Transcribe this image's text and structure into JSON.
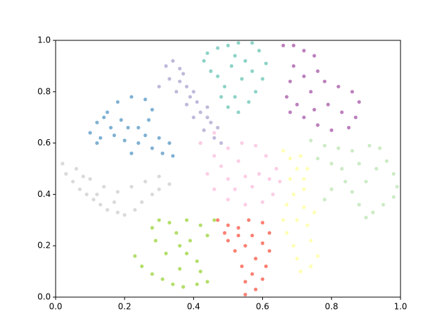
{
  "chart_data": {
    "type": "scatter",
    "xlim": [
      0,
      1
    ],
    "ylim": [
      0,
      1
    ],
    "xticks": [
      {
        "value": 0,
        "label": "0.0"
      },
      0.2,
      0.4,
      0.6,
      0.8,
      {
        "value": 1,
        "label": "1.0"
      }
    ],
    "yticks": [
      {
        "value": 0,
        "label": "0.0"
      },
      0.2,
      0.4,
      0.6,
      0.8,
      {
        "value": 1,
        "label": "1.0"
      }
    ],
    "series": [
      {
        "color": "#d9d9d9",
        "x": [
          0.02,
          0.03,
          0.05,
          0.07,
          0.09,
          0.11,
          0.13,
          0.15,
          0.18,
          0.2,
          0.23,
          0.25,
          0.28,
          0.3,
          0.33,
          0.06,
          0.1,
          0.14,
          0.18,
          0.22,
          0.26,
          0.3,
          0.12,
          0.17,
          0.08
        ],
        "values": [
          0.52,
          0.48,
          0.45,
          0.42,
          0.4,
          0.38,
          0.36,
          0.34,
          0.33,
          0.32,
          0.34,
          0.37,
          0.4,
          0.42,
          0.44,
          0.5,
          0.46,
          0.43,
          0.41,
          0.43,
          0.45,
          0.47,
          0.4,
          0.37,
          0.47
        ]
      },
      {
        "color": "#80b1d3",
        "x": [
          0.1,
          0.12,
          0.15,
          0.18,
          0.22,
          0.26,
          0.28,
          0.27,
          0.24,
          0.21,
          0.19,
          0.16,
          0.13,
          0.12,
          0.17,
          0.2,
          0.24,
          0.28,
          0.31,
          0.34,
          0.3,
          0.33,
          0.22,
          0.26,
          0.14
        ],
        "values": [
          0.64,
          0.68,
          0.72,
          0.76,
          0.78,
          0.77,
          0.73,
          0.69,
          0.66,
          0.66,
          0.69,
          0.66,
          0.62,
          0.6,
          0.63,
          0.61,
          0.6,
          0.58,
          0.56,
          0.55,
          0.62,
          0.6,
          0.56,
          0.63,
          0.7
        ]
      },
      {
        "color": "#bebada",
        "x": [
          0.32,
          0.34,
          0.36,
          0.33,
          0.36,
          0.38,
          0.35,
          0.39,
          0.41,
          0.38,
          0.42,
          0.44,
          0.4,
          0.45,
          0.47,
          0.43,
          0.46,
          0.48,
          0.42,
          0.37,
          0.4,
          0.44,
          0.3
        ],
        "values": [
          0.9,
          0.92,
          0.89,
          0.85,
          0.84,
          0.82,
          0.8,
          0.78,
          0.76,
          0.75,
          0.72,
          0.7,
          0.7,
          0.68,
          0.66,
          0.65,
          0.62,
          0.6,
          0.6,
          0.87,
          0.8,
          0.74,
          0.82
        ]
      },
      {
        "color": "#8dd3c7",
        "x": [
          0.43,
          0.45,
          0.44,
          0.47,
          0.5,
          0.53,
          0.57,
          0.59,
          0.61,
          0.6,
          0.58,
          0.56,
          0.52,
          0.49,
          0.47,
          0.51,
          0.55,
          0.54,
          0.5,
          0.53,
          0.48,
          0.57,
          0.52
        ],
        "values": [
          0.92,
          0.88,
          0.95,
          0.97,
          0.98,
          0.99,
          0.99,
          0.96,
          0.91,
          0.85,
          0.8,
          0.76,
          0.78,
          0.82,
          0.86,
          0.9,
          0.92,
          0.85,
          0.74,
          0.72,
          0.78,
          0.88,
          0.94
        ]
      },
      {
        "color": "#bc80bd",
        "x": [
          0.66,
          0.69,
          0.72,
          0.75,
          0.76,
          0.78,
          0.82,
          0.86,
          0.88,
          0.87,
          0.85,
          0.8,
          0.76,
          0.72,
          0.68,
          0.67,
          0.68,
          0.69,
          0.72,
          0.74,
          0.79,
          0.83,
          0.7,
          0.75
        ],
        "values": [
          0.98,
          0.98,
          0.96,
          0.94,
          0.88,
          0.84,
          0.82,
          0.8,
          0.76,
          0.7,
          0.66,
          0.65,
          0.67,
          0.7,
          0.72,
          0.78,
          0.84,
          0.9,
          0.86,
          0.8,
          0.75,
          0.72,
          0.75,
          0.73
        ]
      },
      {
        "color": "#ccebc5",
        "x": [
          0.74,
          0.78,
          0.82,
          0.86,
          0.91,
          0.94,
          0.96,
          0.98,
          0.99,
          0.98,
          0.95,
          0.92,
          0.9,
          0.88,
          0.86,
          0.84,
          0.8,
          0.78,
          0.8,
          0.76,
          0.83,
          0.9,
          0.93,
          0.88
        ],
        "values": [
          0.61,
          0.59,
          0.58,
          0.57,
          0.59,
          0.58,
          0.53,
          0.48,
          0.43,
          0.39,
          0.36,
          0.33,
          0.31,
          0.36,
          0.41,
          0.45,
          0.42,
          0.38,
          0.52,
          0.54,
          0.5,
          0.45,
          0.5,
          0.52
        ]
      },
      {
        "color": "#ffffb3",
        "x": [
          0.66,
          0.68,
          0.7,
          0.72,
          0.72,
          0.69,
          0.67,
          0.66,
          0.67,
          0.69,
          0.7,
          0.71,
          0.74,
          0.76,
          0.74,
          0.73,
          0.75,
          0.72,
          0.7,
          0.68,
          0.71,
          0.73
        ],
        "values": [
          0.57,
          0.54,
          0.5,
          0.46,
          0.42,
          0.4,
          0.36,
          0.3,
          0.25,
          0.2,
          0.15,
          0.1,
          0.12,
          0.16,
          0.22,
          0.28,
          0.33,
          0.35,
          0.3,
          0.46,
          0.55,
          0.5
        ]
      },
      {
        "color": "#fccde5",
        "x": [
          0.46,
          0.5,
          0.54,
          0.58,
          0.61,
          0.64,
          0.65,
          0.63,
          0.6,
          0.55,
          0.5,
          0.46,
          0.44,
          0.5,
          0.55,
          0.59,
          0.53,
          0.57,
          0.48,
          0.52,
          0.62,
          0.42,
          0.46
        ],
        "values": [
          0.55,
          0.58,
          0.6,
          0.59,
          0.55,
          0.5,
          0.45,
          0.4,
          0.37,
          0.36,
          0.38,
          0.42,
          0.48,
          0.46,
          0.47,
          0.48,
          0.53,
          0.43,
          0.51,
          0.42,
          0.46,
          0.6,
          0.64
        ]
      },
      {
        "color": "#fb8072",
        "x": [
          0.47,
          0.5,
          0.53,
          0.56,
          0.6,
          0.62,
          0.62,
          0.61,
          0.6,
          0.58,
          0.55,
          0.55,
          0.54,
          0.52,
          0.5,
          0.55,
          0.58,
          0.57,
          0.6,
          0.53,
          0.49,
          0.57
        ],
        "values": [
          0.3,
          0.28,
          0.27,
          0.3,
          0.29,
          0.25,
          0.18,
          0.12,
          0.07,
          0.03,
          0.01,
          0.06,
          0.12,
          0.18,
          0.22,
          0.2,
          0.15,
          0.24,
          0.21,
          0.24,
          0.25,
          0.09
        ]
      },
      {
        "color": "#b3de69",
        "x": [
          0.23,
          0.25,
          0.28,
          0.31,
          0.34,
          0.37,
          0.41,
          0.44,
          0.42,
          0.41,
          0.38,
          0.36,
          0.35,
          0.33,
          0.3,
          0.28,
          0.29,
          0.32,
          0.39,
          0.38,
          0.42,
          0.46,
          0.44,
          0.36
        ],
        "values": [
          0.16,
          0.12,
          0.09,
          0.07,
          0.05,
          0.04,
          0.05,
          0.06,
          0.1,
          0.14,
          0.17,
          0.2,
          0.25,
          0.29,
          0.3,
          0.27,
          0.22,
          0.17,
          0.22,
          0.3,
          0.28,
          0.3,
          0.24,
          0.11
        ]
      }
    ]
  }
}
